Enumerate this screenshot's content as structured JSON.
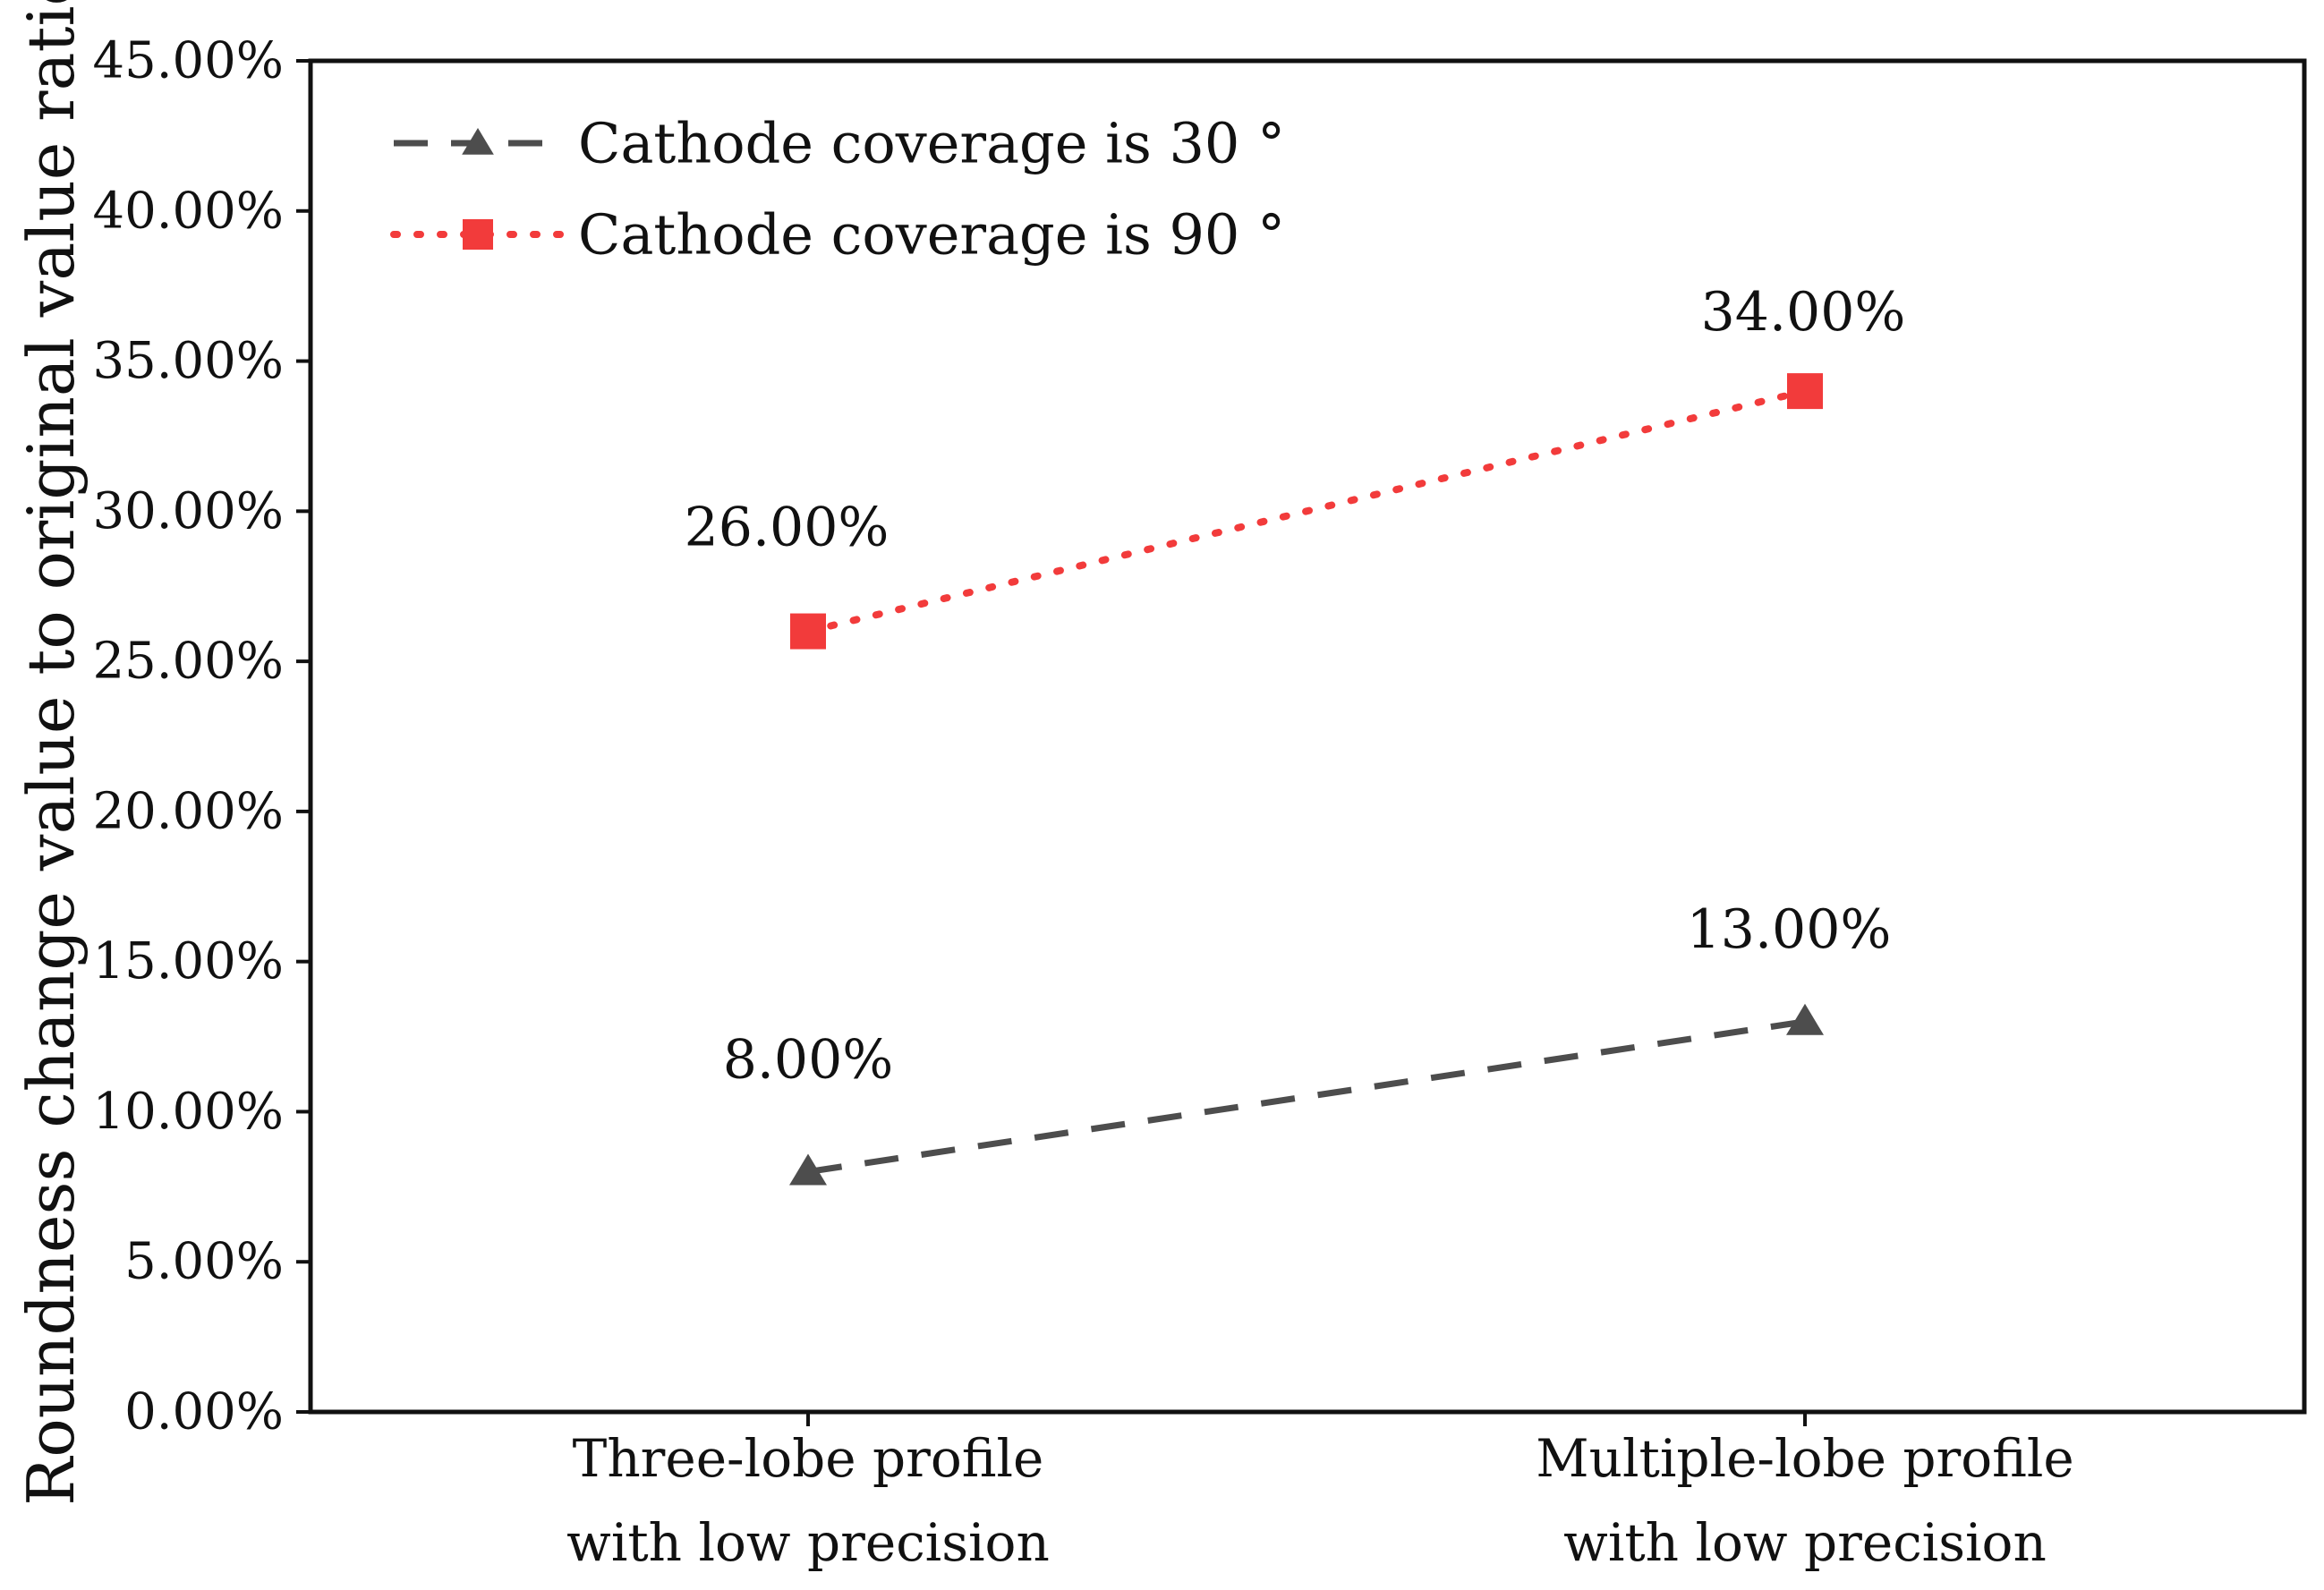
{
  "chart_data": {
    "type": "line",
    "title": "",
    "xlabel": "",
    "ylabel": "Roundness change value to original value ratio",
    "ylim": [
      0,
      45
    ],
    "yticks": [
      0,
      5,
      10,
      15,
      20,
      25,
      30,
      35,
      40,
      45
    ],
    "ytick_labels": [
      "0.00%",
      "5.00%",
      "10.00%",
      "15.00%",
      "20.00%",
      "25.00%",
      "30.00%",
      "35.00%",
      "40.00%",
      "45.00%"
    ],
    "categories": [
      [
        "Three-lobe profile",
        "with low precision"
      ],
      [
        "Multiple-lobe profile",
        "with low precision"
      ]
    ],
    "grid": false,
    "legend_position": "top-left",
    "series": [
      {
        "name": "Cathode coverage is 30 °",
        "values": [
          8,
          13
        ],
        "labels": [
          "8.00%",
          "13.00%"
        ],
        "color": "#4d4d4d",
        "marker": "triangle",
        "line_style": "dashed"
      },
      {
        "name": "Cathode coverage is 90 °",
        "values": [
          26,
          34
        ],
        "labels": [
          "26.00%",
          "34.00%"
        ],
        "color": "#f23b3b",
        "marker": "square",
        "line_style": "dotted"
      }
    ]
  }
}
